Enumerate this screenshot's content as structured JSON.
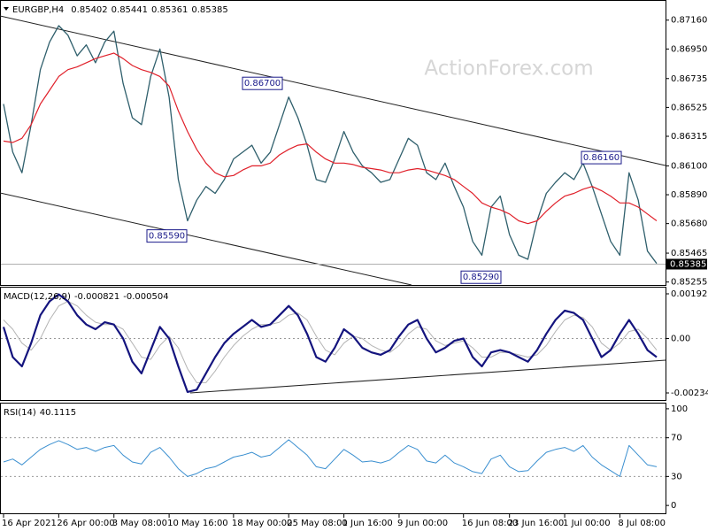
{
  "chart_data": [
    {
      "type": "line",
      "title": "EURGBP,H4",
      "header_values": [
        0.85402,
        0.85441,
        0.85361,
        0.85385
      ],
      "watermark": "ActionForex.com",
      "ylim": [
        0.8524,
        0.873
      ],
      "yticks": [
        {
          "value": 0.8716,
          "label": "0.87160"
        },
        {
          "value": 0.8695,
          "label": "0.86950"
        },
        0.86735,
        0.86525,
        0.86315,
        {
          "value": 0.861,
          "label": "0.86100"
        },
        {
          "value": 0.8589,
          "label": "0.85890"
        },
        {
          "value": 0.8568,
          "label": "0.85680"
        },
        0.85465,
        0.85255
      ],
      "grid": false,
      "last": 0.85385,
      "annotations": [
        {
          "value": 0.867,
          "label": "0.86700"
        },
        {
          "value": 0.8559,
          "label": "0.85590"
        },
        {
          "value": 0.8529,
          "label": "0.85290"
        },
        {
          "value": 0.8616,
          "label": "0.86160"
        }
      ],
      "series": [
        {
          "color": "#2f5f6c",
          "width": 1.3,
          "values": [
            0.8655,
            0.862,
            0.8605,
            0.864,
            0.868,
            0.87,
            0.8712,
            0.8705,
            0.869,
            0.8698,
            0.8685,
            0.87,
            0.8708,
            0.867,
            0.8645,
            0.864,
            0.8675,
            0.8695,
            0.866,
            0.86,
            0.857,
            0.8585,
            0.8595,
            0.859,
            0.86,
            0.8615,
            0.862,
            0.8625,
            0.8612,
            0.862,
            0.864,
            0.866,
            0.8645,
            0.8625,
            0.86,
            0.8598,
            0.8615,
            0.8635,
            0.862,
            0.861,
            0.8605,
            0.8598,
            0.86,
            0.8615,
            0.863,
            0.8625,
            0.8605,
            0.86,
            0.8612,
            0.8595,
            0.858,
            0.8555,
            0.8545,
            0.858,
            0.8588,
            0.856,
            0.8545,
            0.8542,
            0.857,
            0.859,
            0.8598,
            0.8605,
            0.86,
            0.8612,
            0.8595,
            0.8575,
            0.8555,
            0.8545,
            0.8605,
            0.8585,
            0.8548,
            0.8539
          ]
        },
        {
          "color": "#e0202a",
          "width": 1.2,
          "values": [
            0.8628,
            0.8627,
            0.863,
            0.864,
            0.8655,
            0.8665,
            0.8675,
            0.868,
            0.8682,
            0.8685,
            0.8688,
            0.869,
            0.8692,
            0.8688,
            0.8683,
            0.868,
            0.8678,
            0.8675,
            0.8668,
            0.865,
            0.8635,
            0.8622,
            0.8612,
            0.8605,
            0.8602,
            0.8603,
            0.8607,
            0.861,
            0.861,
            0.8612,
            0.8618,
            0.8622,
            0.8625,
            0.8626,
            0.862,
            0.8615,
            0.8612,
            0.8612,
            0.8611,
            0.8609,
            0.8608,
            0.8607,
            0.8605,
            0.8605,
            0.8607,
            0.8608,
            0.8607,
            0.8605,
            0.8603,
            0.86,
            0.8595,
            0.859,
            0.8583,
            0.858,
            0.8578,
            0.8575,
            0.857,
            0.8568,
            0.857,
            0.8577,
            0.8583,
            0.8588,
            0.859,
            0.8593,
            0.8595,
            0.8592,
            0.8588,
            0.8583,
            0.8583,
            0.858,
            0.8575,
            0.857
          ]
        }
      ]
    },
    {
      "type": "line",
      "title": "MACD(12,26,9)",
      "header_values": [
        -0.000821,
        -0.000504
      ],
      "ylim": [
        -0.002609,
        0.002189
      ],
      "yticks": [
        0.001922,
        {
          "value": 0,
          "label": "0.00"
        },
        -0.002342
      ],
      "grid": true,
      "series": [
        {
          "color": "#b4b4b4",
          "width": 1,
          "values": [
            0.0008,
            0.0004,
            -0.0002,
            -0.0005,
            0,
            0.0008,
            0.0014,
            0.0016,
            0.0014,
            0.001,
            0.0007,
            0.0006,
            0.0006,
            0.0004,
            -0.0002,
            -0.0008,
            -0.0009,
            -0.0003,
            0.0001,
            -0.0004,
            -0.0013,
            -0.0019,
            -0.0019,
            -0.0014,
            -0.0008,
            -0.0003,
            0.0001,
            0.0004,
            0.0006,
            0.0006,
            0.0007,
            0.001,
            0.0011,
            0.0008,
            0.0001,
            -0.0005,
            -0.0007,
            -0.0002,
            0.0001,
            0,
            -0.0003,
            -0.0005,
            -0.0006,
            -0.0003,
            0.0002,
            0.0005,
            0.0004,
            -0.0001,
            -0.0003,
            -0.0002,
            -0.0001,
            -0.0004,
            -0.0008,
            -0.0008,
            -0.0006,
            -0.0006,
            -0.0007,
            -0.0008,
            -0.0007,
            -0.0003,
            0.0003,
            0.0008,
            0.001,
            0.0009,
            0.0005,
            -0.0002,
            -0.0005,
            -0.0002,
            0.0003,
            0.0004,
            0,
            -0.0005
          ]
        },
        {
          "color": "#14147e",
          "width": 2.2,
          "values": [
            0.0005,
            -0.0008,
            -0.0012,
            -0.0002,
            0.001,
            0.0016,
            0.0019,
            0.0016,
            0.001,
            0.0006,
            0.0004,
            0.0007,
            0.0006,
            0,
            -0.001,
            -0.0015,
            -0.0005,
            0.0005,
            0,
            -0.0012,
            -0.0023,
            -0.0022,
            -0.0015,
            -0.0008,
            -0.0002,
            0.0002,
            0.0005,
            0.0008,
            0.0005,
            0.0006,
            0.001,
            0.0014,
            0.001,
            0.0002,
            -0.0008,
            -0.001,
            -0.0004,
            0.0004,
            0.0001,
            -0.0004,
            -0.0006,
            -0.0007,
            -0.0005,
            0.0001,
            0.0006,
            0.0008,
            0,
            -0.0006,
            -0.0004,
            -0.0001,
            0,
            -0.0008,
            -0.0012,
            -0.0006,
            -0.0005,
            -0.0006,
            -0.0008,
            -0.001,
            -0.0005,
            0.0002,
            0.0008,
            0.0012,
            0.0011,
            0.0008,
            0,
            -0.0008,
            -0.0005,
            0.0002,
            0.0008,
            0.0002,
            -0.0005,
            -0.0008
          ]
        }
      ]
    },
    {
      "type": "line",
      "title": "RSI(14)",
      "header_values": [
        40.1115
      ],
      "ylim": [
        -7.2,
        105.4
      ],
      "yticks": [
        100,
        70,
        30,
        0
      ],
      "grid": true,
      "categories": [
        "16 Apr 2021",
        null,
        null,
        null,
        null,
        null,
        "26 Apr 00:00",
        null,
        null,
        null,
        null,
        null,
        "3 May 08:00",
        null,
        null,
        null,
        null,
        null,
        "10 May 16:00",
        null,
        null,
        null,
        null,
        null,
        null,
        "18 May 00:00",
        null,
        null,
        null,
        null,
        null,
        "25 May 08:00",
        null,
        null,
        null,
        null,
        null,
        "1 Jun 16:00",
        null,
        null,
        null,
        null,
        null,
        "9 Jun 00:00",
        null,
        null,
        null,
        null,
        null,
        null,
        "16 Jun 08:00",
        null,
        null,
        null,
        null,
        "23 Jun 16:00",
        null,
        null,
        null,
        null,
        null,
        "1 Jul 00:00",
        null,
        null,
        null,
        null,
        null,
        "8 Jul 08:00",
        null,
        null,
        null,
        null
      ],
      "series": [
        {
          "color": "#3a8fd0",
          "width": 1,
          "values": [
            45,
            48,
            42,
            50,
            58,
            63,
            67,
            63,
            58,
            60,
            56,
            60,
            62,
            52,
            45,
            43,
            55,
            60,
            50,
            38,
            30,
            33,
            38,
            40,
            45,
            50,
            52,
            55,
            50,
            52,
            60,
            68,
            60,
            52,
            40,
            38,
            48,
            58,
            52,
            45,
            46,
            44,
            47,
            55,
            62,
            58,
            46,
            44,
            52,
            44,
            40,
            35,
            33,
            48,
            52,
            40,
            35,
            36,
            46,
            55,
            58,
            60,
            56,
            62,
            50,
            42,
            36,
            30,
            62,
            52,
            42,
            40
          ]
        }
      ]
    }
  ]
}
